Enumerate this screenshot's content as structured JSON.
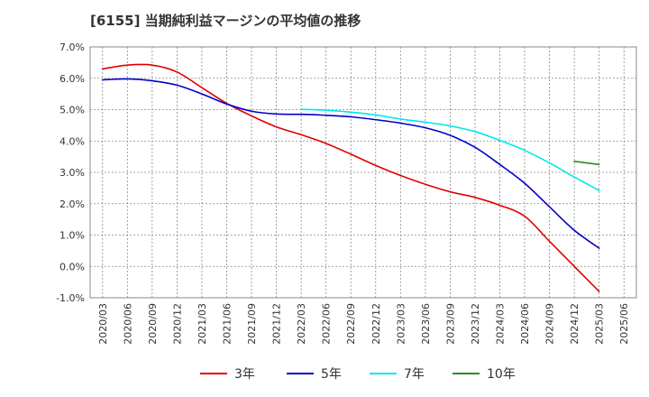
{
  "title": "[6155]  当期純利益マージンの平均値の推移",
  "chart_data": {
    "type": "line",
    "title": "[6155]  当期純利益マージンの平均値の推移",
    "xlabel": "",
    "ylabel": "",
    "ylim": [
      -1.0,
      7.0
    ],
    "yticks": [
      "-1.0%",
      "0.0%",
      "1.0%",
      "2.0%",
      "3.0%",
      "4.0%",
      "5.0%",
      "6.0%",
      "7.0%"
    ],
    "xticks": [
      "2020/03",
      "2020/06",
      "2020/09",
      "2020/12",
      "2021/03",
      "2021/06",
      "2021/09",
      "2021/12",
      "2022/03",
      "2022/06",
      "2022/09",
      "2022/12",
      "2023/03",
      "2023/06",
      "2023/09",
      "2023/12",
      "2024/03",
      "2024/06",
      "2024/09",
      "2024/12",
      "2025/03",
      "2025/06"
    ],
    "grid": true,
    "legend_position": "bottom",
    "series": [
      {
        "name": "3年",
        "color": "#e00000",
        "x": [
          "2020/03",
          "2020/06",
          "2020/09",
          "2020/12",
          "2021/03",
          "2021/06",
          "2021/09",
          "2021/12",
          "2022/03",
          "2022/06",
          "2022/09",
          "2022/12",
          "2023/03",
          "2023/06",
          "2023/09",
          "2023/12",
          "2024/03",
          "2024/06",
          "2024/09",
          "2024/12",
          "2025/03"
        ],
        "values": [
          6.3,
          6.42,
          6.42,
          6.2,
          5.7,
          5.2,
          4.8,
          4.45,
          4.2,
          3.92,
          3.58,
          3.22,
          2.9,
          2.62,
          2.38,
          2.2,
          1.95,
          1.6,
          0.8,
          0.0,
          -0.8
        ]
      },
      {
        "name": "5年",
        "color": "#0000cc",
        "x": [
          "2020/03",
          "2020/06",
          "2020/09",
          "2020/12",
          "2021/03",
          "2021/06",
          "2021/09",
          "2021/12",
          "2022/03",
          "2022/06",
          "2022/09",
          "2022/12",
          "2023/03",
          "2023/06",
          "2023/09",
          "2023/12",
          "2024/03",
          "2024/06",
          "2024/09",
          "2024/12",
          "2025/03"
        ],
        "values": [
          5.95,
          5.98,
          5.92,
          5.78,
          5.5,
          5.18,
          4.95,
          4.86,
          4.85,
          4.82,
          4.77,
          4.68,
          4.57,
          4.42,
          4.18,
          3.8,
          3.25,
          2.65,
          1.9,
          1.15,
          0.58
        ]
      },
      {
        "name": "7年",
        "color": "#00e8e8",
        "x": [
          "2022/03",
          "2022/06",
          "2022/09",
          "2022/12",
          "2023/03",
          "2023/06",
          "2023/09",
          "2023/12",
          "2024/03",
          "2024/06",
          "2024/09",
          "2024/12",
          "2025/03"
        ],
        "values": [
          5.01,
          4.98,
          4.92,
          4.83,
          4.7,
          4.6,
          4.48,
          4.3,
          4.02,
          3.7,
          3.3,
          2.85,
          2.42
        ]
      },
      {
        "name": "10年",
        "color": "#2a8a2a",
        "x": [
          "2024/12",
          "2025/03"
        ],
        "values": [
          3.35,
          3.25
        ]
      }
    ]
  }
}
